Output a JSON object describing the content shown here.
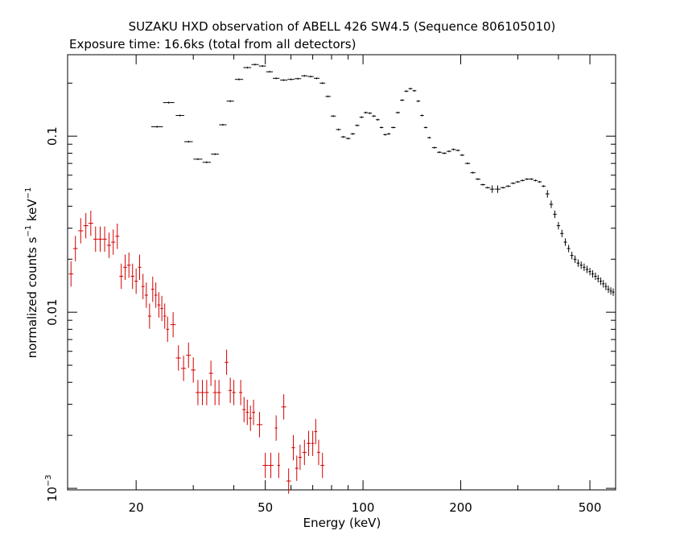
{
  "chart_data": {
    "type": "scatter",
    "title": "SUZAKU HXD observation of ABELL 426 SW4.5 (Sequence 806105010)",
    "subtitle": "Exposure time: 16.6ks (total from all detectors)",
    "xlabel": "Energy (keV)",
    "ylabel": {
      "prefix": "normalized counts s",
      "exp1": "−1",
      "middle": " keV",
      "exp2": "−1"
    },
    "x_scale": "log",
    "y_scale": "log",
    "xlim": [
      12.3,
      600
    ],
    "ylim": [
      0.00098,
      0.29
    ],
    "x_ticks": [
      {
        "value": 20,
        "label": "20"
      },
      {
        "value": 50,
        "label": "50"
      },
      {
        "value": 100,
        "label": "100"
      },
      {
        "value": 200,
        "label": "200"
      },
      {
        "value": 500,
        "label": "500"
      }
    ],
    "y_ticks": [
      {
        "value": 0.1,
        "label": "0.1"
      },
      {
        "value": 0.01,
        "label": "0.01"
      },
      {
        "value": 0.001,
        "label": "10",
        "exp": "−3"
      }
    ],
    "legend": "none",
    "grid": false,
    "series": [
      {
        "color": "#000000",
        "points": [
          [
            23.2,
            0.113
          ],
          [
            25.2,
            0.155
          ],
          [
            27.3,
            0.131
          ],
          [
            29.0,
            0.093
          ],
          [
            31.0,
            0.074
          ],
          [
            33.0,
            0.071
          ],
          [
            35.0,
            0.079
          ],
          [
            37.0,
            0.116
          ],
          [
            39.0,
            0.158
          ],
          [
            41.5,
            0.21
          ],
          [
            44.0,
            0.245
          ],
          [
            46.5,
            0.255
          ],
          [
            49.0,
            0.25
          ],
          [
            51.5,
            0.232
          ],
          [
            54.0,
            0.213
          ],
          [
            57.0,
            0.208
          ],
          [
            60.0,
            0.21
          ],
          [
            63.0,
            0.212
          ],
          [
            66.0,
            0.22
          ],
          [
            69.0,
            0.218
          ],
          [
            72.0,
            0.213
          ],
          [
            75.0,
            0.2
          ],
          [
            78.0,
            0.168
          ],
          [
            81.0,
            0.13
          ],
          [
            84.0,
            0.109
          ],
          [
            87.0,
            0.099
          ],
          [
            90.0,
            0.097
          ],
          [
            93.0,
            0.103
          ],
          [
            96.0,
            0.115
          ],
          [
            99.0,
            0.128
          ],
          [
            102.0,
            0.136
          ],
          [
            105.0,
            0.135
          ],
          [
            108.0,
            0.13
          ],
          [
            111.0,
            0.124
          ],
          [
            114.0,
            0.112
          ],
          [
            117.0,
            0.102
          ],
          [
            120.0,
            0.103
          ],
          [
            124.0,
            0.112
          ],
          [
            128.0,
            0.136
          ],
          [
            132.0,
            0.16
          ],
          [
            136.0,
            0.18
          ],
          [
            140.0,
            0.186
          ],
          [
            144.0,
            0.181
          ],
          [
            148.0,
            0.158
          ],
          [
            152.0,
            0.131
          ],
          [
            156.0,
            0.112
          ],
          [
            160.0,
            0.098
          ],
          [
            166.0,
            0.086
          ],
          [
            172.0,
            0.081
          ],
          [
            178.0,
            0.08
          ],
          [
            184.0,
            0.082
          ],
          [
            190.0,
            0.084
          ],
          [
            196.0,
            0.083
          ],
          [
            202.0,
            0.078
          ],
          [
            210.0,
            0.07
          ],
          [
            218.0,
            0.062
          ],
          [
            226.0,
            0.057
          ],
          [
            234.0,
            0.053
          ],
          [
            242.0,
            0.051
          ],
          [
            250.0,
            0.05
          ],
          [
            260.0,
            0.05
          ],
          [
            270.0,
            0.051
          ],
          [
            280.0,
            0.052
          ],
          [
            290.0,
            0.054
          ],
          [
            300.0,
            0.055
          ],
          [
            310.0,
            0.056
          ],
          [
            320.0,
            0.057
          ],
          [
            330.0,
            0.057
          ],
          [
            340.0,
            0.056
          ],
          [
            350.0,
            0.055
          ],
          [
            360.0,
            0.052
          ],
          [
            370.0,
            0.047
          ],
          [
            380.0,
            0.041
          ],
          [
            390.0,
            0.036
          ],
          [
            400.0,
            0.031
          ],
          [
            410.0,
            0.028
          ],
          [
            420.0,
            0.025
          ],
          [
            430.0,
            0.023
          ],
          [
            440.0,
            0.021
          ],
          [
            450.0,
            0.02
          ],
          [
            460.0,
            0.019
          ],
          [
            470.0,
            0.0185
          ],
          [
            480.0,
            0.018
          ],
          [
            490.0,
            0.0175
          ],
          [
            500.0,
            0.017
          ],
          [
            510.0,
            0.0165
          ],
          [
            520.0,
            0.016
          ],
          [
            530.0,
            0.0155
          ],
          [
            540.0,
            0.015
          ],
          [
            550.0,
            0.0145
          ],
          [
            560.0,
            0.014
          ],
          [
            570.0,
            0.0135
          ],
          [
            580.0,
            0.0132
          ],
          [
            590.0,
            0.013
          ]
        ]
      },
      {
        "color": "#d40000",
        "points": [
          [
            12.6,
            0.0165
          ],
          [
            13.0,
            0.023
          ],
          [
            13.5,
            0.029
          ],
          [
            14.0,
            0.031
          ],
          [
            14.5,
            0.032
          ],
          [
            15.0,
            0.026
          ],
          [
            15.5,
            0.026
          ],
          [
            16.0,
            0.026
          ],
          [
            16.5,
            0.024
          ],
          [
            17.0,
            0.025
          ],
          [
            17.5,
            0.027
          ],
          [
            18.0,
            0.016
          ],
          [
            18.5,
            0.018
          ],
          [
            19.0,
            0.0185
          ],
          [
            19.5,
            0.016
          ],
          [
            20.0,
            0.015
          ],
          [
            20.5,
            0.018
          ],
          [
            21.0,
            0.014
          ],
          [
            21.5,
            0.0125
          ],
          [
            22.0,
            0.0095
          ],
          [
            22.5,
            0.0135
          ],
          [
            23.0,
            0.0125
          ],
          [
            23.5,
            0.011
          ],
          [
            24.0,
            0.0105
          ],
          [
            24.5,
            0.0095
          ],
          [
            25.0,
            0.008
          ],
          [
            26.0,
            0.0085
          ],
          [
            27.0,
            0.0055
          ],
          [
            28.0,
            0.0048
          ],
          [
            29.0,
            0.0057
          ],
          [
            30.0,
            0.0047
          ],
          [
            31.0,
            0.0035
          ],
          [
            32.0,
            0.0035
          ],
          [
            33.0,
            0.0035
          ],
          [
            34.0,
            0.0045
          ],
          [
            35.0,
            0.0035
          ],
          [
            36.0,
            0.0035
          ],
          [
            38.0,
            0.0052
          ],
          [
            39.0,
            0.0036
          ],
          [
            40.0,
            0.0035
          ],
          [
            42.0,
            0.0035
          ],
          [
            43.0,
            0.0028
          ],
          [
            44.0,
            0.0027
          ],
          [
            45.0,
            0.0025
          ],
          [
            46.0,
            0.0027
          ],
          [
            48.0,
            0.0023
          ],
          [
            50.0,
            0.00135
          ],
          [
            52.0,
            0.00135
          ],
          [
            54.0,
            0.0022
          ],
          [
            55.0,
            0.00135
          ],
          [
            57.0,
            0.0029
          ],
          [
            59.0,
            0.0011
          ],
          [
            61.0,
            0.0017
          ],
          [
            62.5,
            0.0013
          ],
          [
            64.0,
            0.0015
          ],
          [
            66.0,
            0.0016
          ],
          [
            68.0,
            0.0018
          ],
          [
            70.0,
            0.0018
          ],
          [
            71.5,
            0.0021
          ],
          [
            73.0,
            0.0016
          ],
          [
            75.0,
            0.00135
          ]
        ]
      }
    ]
  }
}
